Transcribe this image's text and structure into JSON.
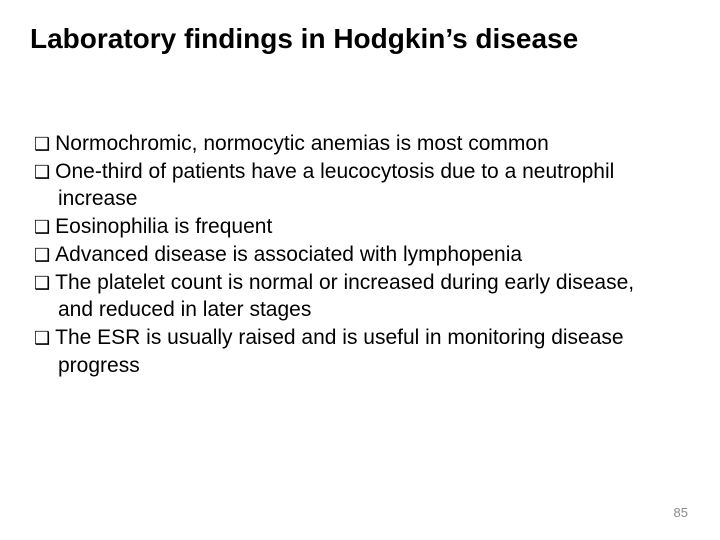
{
  "slide": {
    "title": "Laboratory findings in Hodgkin’s disease",
    "title_fontsize": 28,
    "title_fontweight": "bold",
    "body_fontsize": 21,
    "text_color": "#000000",
    "background_color": "#ffffff",
    "bullet_marker": "❑",
    "bullets": [
      "Normochromic, normocytic anemias is most common",
      "One-third of patients have a leucocytosis due to a neutrophil increase",
      "Eosinophilia is frequent",
      "Advanced disease is associated with lymphopenia",
      "The platelet count is normal or increased during early disease, and reduced in later stages",
      "The ESR is usually raised and is useful in monitoring disease progress"
    ],
    "page_number": "85",
    "page_number_color": "#8a8a8a",
    "page_number_fontsize": 13
  }
}
